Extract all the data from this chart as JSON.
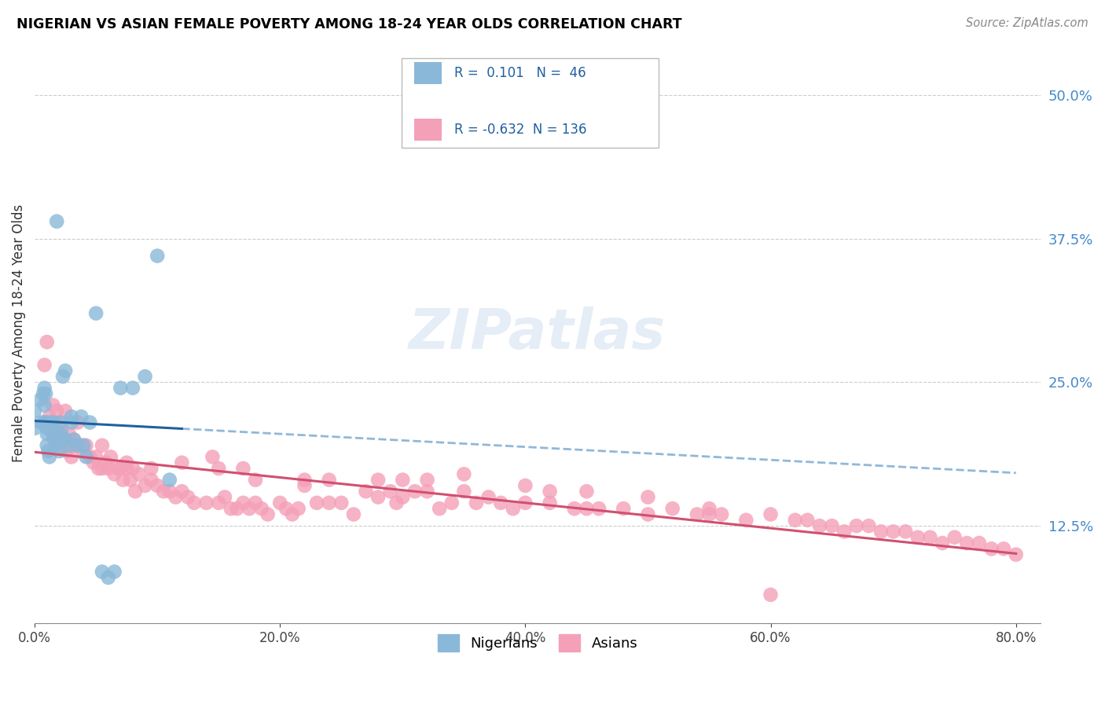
{
  "title": "NIGERIAN VS ASIAN FEMALE POVERTY AMONG 18-24 YEAR OLDS CORRELATION CHART",
  "source": "Source: ZipAtlas.com",
  "ylabel_label": "Female Poverty Among 18-24 Year Olds",
  "legend_bottom": [
    "Nigerians",
    "Asians"
  ],
  "nigerian_color": "#8ab8d8",
  "asian_color": "#f4a0b8",
  "nigerian_line_color": "#2060a0",
  "asian_line_color": "#d05070",
  "nigerian_dashed_color": "#90b8d8",
  "watermark": "ZIPatlas",
  "r_text_color": "#2060a0",
  "ytick_color": "#4488cc",
  "nigerian_r": "R =  0.101",
  "nigerian_n": "N =  46",
  "asian_r": "R = -0.632",
  "asian_n": "N = 136",
  "xlim": [
    0.0,
    0.82
  ],
  "ylim": [
    0.04,
    0.545
  ],
  "x_ticks": [
    0.0,
    0.2,
    0.4,
    0.6,
    0.8
  ],
  "y_ticks": [
    0.125,
    0.25,
    0.375,
    0.5
  ],
  "nig_x": [
    0.0,
    0.0,
    0.005,
    0.005,
    0.007,
    0.008,
    0.008,
    0.008,
    0.009,
    0.01,
    0.01,
    0.01,
    0.01,
    0.011,
    0.012,
    0.013,
    0.015,
    0.015,
    0.016,
    0.017,
    0.018,
    0.02,
    0.02,
    0.021,
    0.022,
    0.023,
    0.025,
    0.025,
    0.028,
    0.03,
    0.03,
    0.032,
    0.035,
    0.038,
    0.04,
    0.042,
    0.045,
    0.05,
    0.055,
    0.06,
    0.065,
    0.07,
    0.08,
    0.09,
    0.1,
    0.11
  ],
  "nig_y": [
    0.21,
    0.225,
    0.215,
    0.235,
    0.24,
    0.215,
    0.23,
    0.245,
    0.24,
    0.215,
    0.21,
    0.205,
    0.195,
    0.19,
    0.185,
    0.215,
    0.215,
    0.205,
    0.2,
    0.195,
    0.39,
    0.19,
    0.205,
    0.215,
    0.205,
    0.255,
    0.2,
    0.26,
    0.195,
    0.215,
    0.22,
    0.2,
    0.195,
    0.22,
    0.195,
    0.185,
    0.215,
    0.31,
    0.085,
    0.08,
    0.085,
    0.245,
    0.245,
    0.255,
    0.36,
    0.165
  ],
  "asi_x": [
    0.008,
    0.01,
    0.012,
    0.015,
    0.015,
    0.016,
    0.018,
    0.018,
    0.019,
    0.02,
    0.02,
    0.022,
    0.022,
    0.025,
    0.025,
    0.026,
    0.028,
    0.03,
    0.03,
    0.032,
    0.034,
    0.035,
    0.038,
    0.04,
    0.042,
    0.045,
    0.048,
    0.05,
    0.052,
    0.055,
    0.058,
    0.06,
    0.062,
    0.065,
    0.068,
    0.07,
    0.072,
    0.075,
    0.078,
    0.08,
    0.082,
    0.085,
    0.09,
    0.095,
    0.1,
    0.105,
    0.11,
    0.115,
    0.12,
    0.125,
    0.13,
    0.14,
    0.15,
    0.155,
    0.16,
    0.165,
    0.17,
    0.175,
    0.18,
    0.185,
    0.19,
    0.2,
    0.205,
    0.21,
    0.215,
    0.22,
    0.23,
    0.24,
    0.25,
    0.26,
    0.27,
    0.28,
    0.29,
    0.295,
    0.3,
    0.31,
    0.32,
    0.33,
    0.34,
    0.35,
    0.36,
    0.37,
    0.38,
    0.39,
    0.4,
    0.42,
    0.44,
    0.45,
    0.46,
    0.48,
    0.5,
    0.52,
    0.54,
    0.55,
    0.56,
    0.58,
    0.6,
    0.62,
    0.63,
    0.64,
    0.65,
    0.66,
    0.67,
    0.68,
    0.69,
    0.7,
    0.71,
    0.72,
    0.73,
    0.74,
    0.75,
    0.76,
    0.77,
    0.78,
    0.79,
    0.8,
    0.3,
    0.32,
    0.35,
    0.28,
    0.18,
    0.15,
    0.12,
    0.095,
    0.075,
    0.055,
    0.22,
    0.24,
    0.17,
    0.145,
    0.4,
    0.42,
    0.45,
    0.5,
    0.55,
    0.6
  ],
  "asi_y": [
    0.265,
    0.285,
    0.22,
    0.205,
    0.23,
    0.215,
    0.225,
    0.2,
    0.21,
    0.195,
    0.215,
    0.21,
    0.2,
    0.225,
    0.195,
    0.19,
    0.205,
    0.195,
    0.185,
    0.2,
    0.195,
    0.215,
    0.195,
    0.19,
    0.195,
    0.185,
    0.18,
    0.185,
    0.175,
    0.195,
    0.18,
    0.175,
    0.185,
    0.17,
    0.175,
    0.175,
    0.165,
    0.18,
    0.165,
    0.175,
    0.155,
    0.17,
    0.16,
    0.165,
    0.16,
    0.155,
    0.155,
    0.15,
    0.155,
    0.15,
    0.145,
    0.145,
    0.145,
    0.15,
    0.14,
    0.14,
    0.145,
    0.14,
    0.145,
    0.14,
    0.135,
    0.145,
    0.14,
    0.135,
    0.14,
    0.16,
    0.145,
    0.145,
    0.145,
    0.135,
    0.155,
    0.15,
    0.155,
    0.145,
    0.15,
    0.155,
    0.155,
    0.14,
    0.145,
    0.155,
    0.145,
    0.15,
    0.145,
    0.14,
    0.145,
    0.145,
    0.14,
    0.14,
    0.14,
    0.14,
    0.135,
    0.14,
    0.135,
    0.135,
    0.135,
    0.13,
    0.135,
    0.13,
    0.13,
    0.125,
    0.125,
    0.12,
    0.125,
    0.125,
    0.12,
    0.12,
    0.12,
    0.115,
    0.115,
    0.11,
    0.115,
    0.11,
    0.11,
    0.105,
    0.105,
    0.1,
    0.165,
    0.165,
    0.17,
    0.165,
    0.165,
    0.175,
    0.18,
    0.175,
    0.175,
    0.175,
    0.165,
    0.165,
    0.175,
    0.185,
    0.16,
    0.155,
    0.155,
    0.15,
    0.14,
    0.065
  ]
}
